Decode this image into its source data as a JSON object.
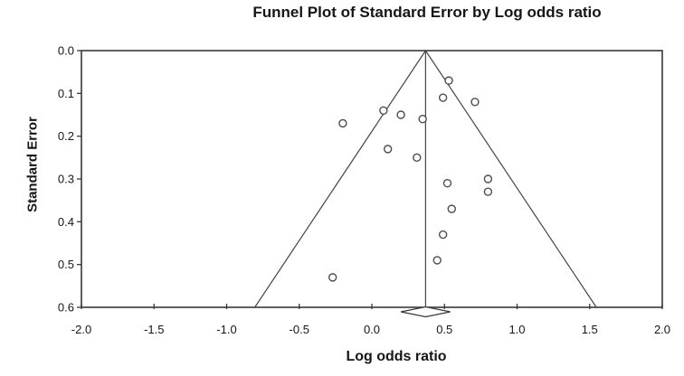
{
  "chart_data": {
    "type": "scatter",
    "chart_kind": "funnel-plot",
    "title": "Funnel Plot of Standard Error by Log odds ratio",
    "xlabel": "Log odds ratio",
    "ylabel": "Standard Error",
    "xlim": [
      -2.0,
      2.0
    ],
    "ylim": [
      0.0,
      0.6
    ],
    "y_axis_inverted": true,
    "grid": false,
    "legend": false,
    "marker": "open-circle",
    "x_ticks": [
      -2.0,
      -1.5,
      -1.0,
      -0.5,
      0.0,
      0.5,
      1.0,
      1.5,
      2.0
    ],
    "x_tick_labels": [
      "-2.0",
      "-1.5",
      "-1.0",
      "-0.5",
      "0.0",
      "0.5",
      "1.0",
      "1.5",
      "2.0"
    ],
    "y_ticks": [
      0.0,
      0.1,
      0.2,
      0.3,
      0.4,
      0.5,
      0.6
    ],
    "y_tick_labels": [
      "0.0",
      "0.1",
      "0.2",
      "0.3",
      "0.4",
      "0.5",
      "0.6"
    ],
    "points": [
      {
        "log_odds_ratio": 0.53,
        "standard_error": 0.07
      },
      {
        "log_odds_ratio": 0.49,
        "standard_error": 0.11
      },
      {
        "log_odds_ratio": 0.71,
        "standard_error": 0.12
      },
      {
        "log_odds_ratio": 0.08,
        "standard_error": 0.14
      },
      {
        "log_odds_ratio": 0.2,
        "standard_error": 0.15
      },
      {
        "log_odds_ratio": 0.35,
        "standard_error": 0.16
      },
      {
        "log_odds_ratio": -0.2,
        "standard_error": 0.17
      },
      {
        "log_odds_ratio": 0.11,
        "standard_error": 0.23
      },
      {
        "log_odds_ratio": 0.31,
        "standard_error": 0.25
      },
      {
        "log_odds_ratio": 0.8,
        "standard_error": 0.3
      },
      {
        "log_odds_ratio": 0.52,
        "standard_error": 0.31
      },
      {
        "log_odds_ratio": 0.8,
        "standard_error": 0.33
      },
      {
        "log_odds_ratio": 0.55,
        "standard_error": 0.37
      },
      {
        "log_odds_ratio": 0.49,
        "standard_error": 0.43
      },
      {
        "log_odds_ratio": 0.45,
        "standard_error": 0.49
      },
      {
        "log_odds_ratio": -0.27,
        "standard_error": 0.53
      }
    ],
    "funnel": {
      "apex_x": 0.37,
      "se_multiplier": 1.96
    },
    "summary": {
      "log_odds_ratio": 0.37,
      "diamond_left": 0.2,
      "diamond_right": 0.54
    }
  },
  "style": {
    "axis_color": "#383838",
    "line_color": "#454545",
    "marker_color": "#4d4d4d",
    "diamond_color": "#383838",
    "text_color": "#161616",
    "background": "#ffffff"
  }
}
